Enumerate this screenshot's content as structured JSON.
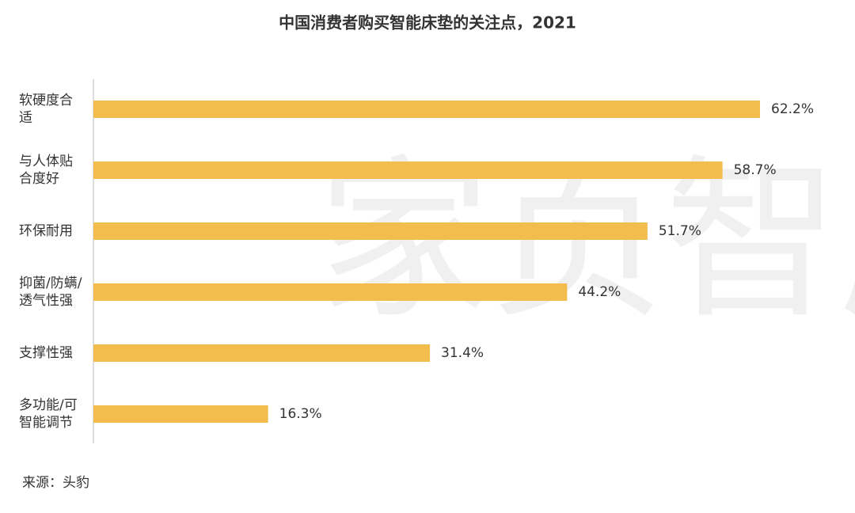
{
  "chart_data": {
    "type": "bar",
    "orientation": "horizontal",
    "title": "中国消费者购买智能床垫的关注点，2021",
    "categories": [
      "软硬度合适",
      "与人体贴合度好",
      "环保耐用",
      "抑菌/防螨/透气性强",
      "支撑性强",
      "多功能/可智能调节"
    ],
    "values": [
      62.2,
      58.7,
      51.7,
      44.2,
      31.4,
      16.3
    ],
    "value_labels": [
      "62.2%",
      "58.7%",
      "51.7%",
      "44.2%",
      "31.4%",
      "16.3%"
    ],
    "color": "#f2bd4c",
    "source": "来源：头豹",
    "watermark": "家页智库"
  }
}
